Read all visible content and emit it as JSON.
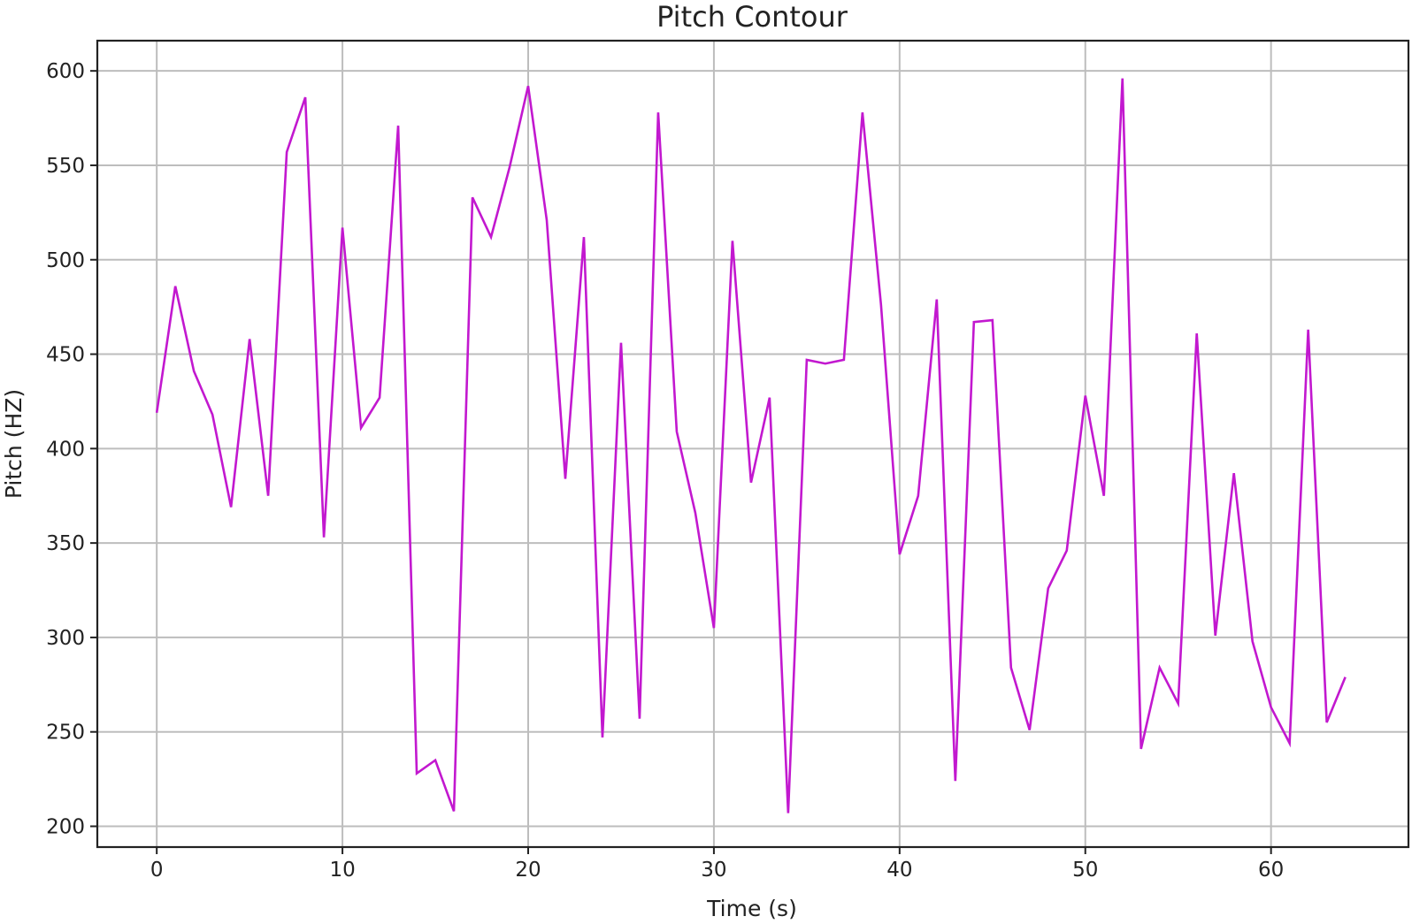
{
  "chart_data": {
    "type": "line",
    "title": "Pitch Contour",
    "xlabel": "Time (s)",
    "ylabel": "Pitch (HZ)",
    "xlim": [
      -3.2,
      67.4
    ],
    "ylim": [
      189,
      616
    ],
    "xticks": [
      0,
      10,
      20,
      30,
      40,
      50,
      60
    ],
    "yticks": [
      200,
      250,
      300,
      350,
      400,
      450,
      500,
      550,
      600
    ],
    "grid": true,
    "legend": "none",
    "line_color": "#c218cf",
    "series": [
      {
        "x": [
          0,
          1,
          2,
          3,
          4,
          5,
          6,
          7,
          8,
          9,
          10,
          11,
          12,
          13,
          14,
          15,
          16,
          17,
          18,
          19,
          20,
          21,
          22,
          23,
          24,
          25,
          26,
          27,
          28,
          29,
          30,
          31,
          32,
          33,
          34,
          35,
          36,
          37,
          38,
          39,
          40,
          41,
          42,
          43,
          44,
          45,
          46,
          47,
          48,
          49,
          50,
          51,
          52,
          53,
          54,
          55,
          56,
          57,
          58,
          59,
          60,
          61,
          62,
          63,
          64
        ],
        "values": [
          419,
          486,
          441,
          418,
          369,
          458,
          375,
          557,
          586,
          353,
          517,
          411,
          427,
          571,
          228,
          235,
          208,
          533,
          512,
          549,
          592,
          521,
          384,
          512,
          247,
          456,
          257,
          578,
          409,
          366,
          305,
          510,
          382,
          427,
          207,
          447,
          445,
          447,
          578,
          476,
          344,
          375,
          479,
          224,
          467,
          468,
          284,
          251,
          326,
          346,
          428,
          375,
          596,
          241,
          284,
          265,
          461,
          301,
          387,
          298,
          263,
          244,
          463,
          255,
          279
        ]
      }
    ]
  }
}
